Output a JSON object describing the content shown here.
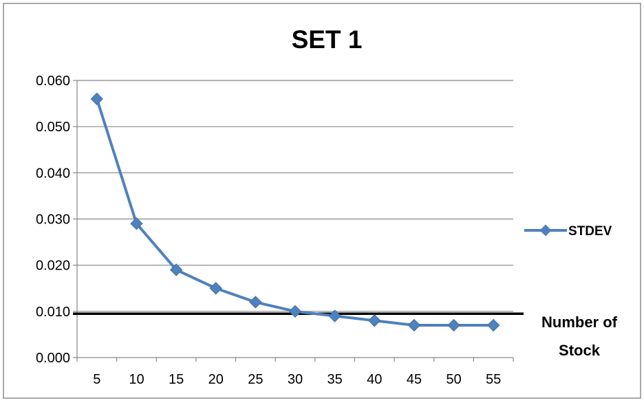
{
  "chart_data": {
    "type": "line",
    "title": "SET 1",
    "xlabel": "",
    "ylabel": "",
    "x": [
      5,
      10,
      15,
      20,
      25,
      30,
      35,
      40,
      45,
      50,
      55
    ],
    "x_tick_labels": [
      "5",
      "10",
      "15",
      "20",
      "25",
      "30",
      "35",
      "40",
      "45",
      "50",
      "55"
    ],
    "y_tick_labels": [
      "0.000",
      "0.010",
      "0.020",
      "0.030",
      "0.040",
      "0.050",
      "0.060"
    ],
    "ylim": [
      0,
      0.06
    ],
    "grid": "horizontal",
    "legend_position": "right",
    "series": [
      {
        "name": "STDEV",
        "color": "#4F81BD",
        "marker": "diamond",
        "values": [
          0.056,
          0.029,
          0.019,
          0.015,
          0.012,
          0.01,
          0.009,
          0.008,
          0.007,
          0.007,
          0.007
        ]
      }
    ],
    "reference_line": {
      "y": 0.0095,
      "color": "#000000"
    },
    "annotation": {
      "lines": [
        "Number of",
        "Stock"
      ]
    }
  }
}
